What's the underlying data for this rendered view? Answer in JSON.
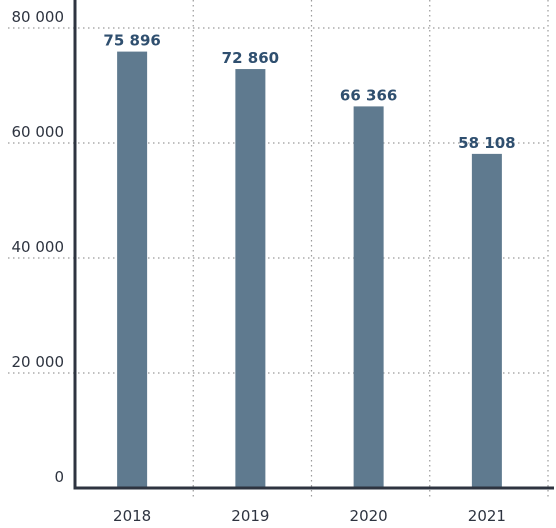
{
  "chart_data": {
    "type": "bar",
    "title": "",
    "xlabel": "",
    "ylabel": "",
    "categories": [
      "2018",
      "2019",
      "2020",
      "2021"
    ],
    "values": [
      75896,
      72860,
      66366,
      58108
    ],
    "data_labels": [
      "75 896",
      "72 860",
      "66 366",
      "58 108"
    ],
    "ylim": [
      0,
      80000
    ],
    "yticks": [
      0,
      20000,
      40000,
      60000,
      80000
    ],
    "ytick_labels": [
      "0",
      "20 000",
      "40 000",
      "60 000",
      "80 000"
    ],
    "grid": true,
    "grid_style": "dotted",
    "legend": "none",
    "colors": {
      "bar": "#5f7a8f",
      "axis": "#2e3440",
      "grid": "#9a9a9a",
      "data_label": "#2f4f6f",
      "tick_label": "#2e3440"
    }
  }
}
